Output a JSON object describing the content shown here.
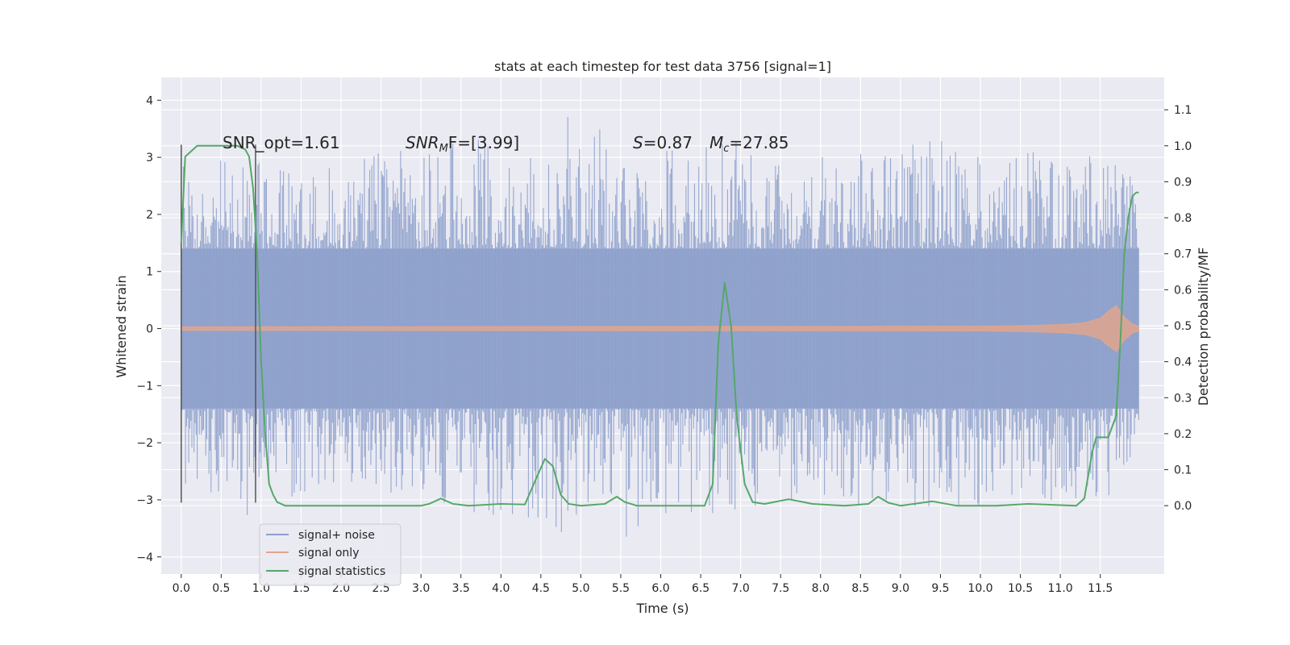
{
  "chart_data": {
    "type": "line",
    "title": "stats at each timestep for test data 3756 [signal=1]",
    "xlabel": "Time (s)",
    "ylabel": "Whitened strain",
    "ylabel_right": "Detection probability/MF",
    "xlim": [
      -0.25,
      12.3
    ],
    "ylim": [
      -4.3,
      4.4
    ],
    "ylim_right": [
      -0.19,
      1.19
    ],
    "x_ticks": [
      "0.0",
      "0.5",
      "1.0",
      "1.5",
      "2.0",
      "2.5",
      "3.0",
      "3.5",
      "4.0",
      "4.5",
      "5.0",
      "5.5",
      "6.0",
      "6.5",
      "7.0",
      "7.5",
      "8.0",
      "8.5",
      "9.0",
      "9.5",
      "10.0",
      "10.5",
      "11.0",
      "11.5"
    ],
    "y_ticks_left": [
      "−4",
      "−3",
      "−2",
      "−1",
      "0",
      "1",
      "2",
      "3",
      "4"
    ],
    "y_ticks_right": [
      "0.0",
      "0.1",
      "0.2",
      "0.3",
      "0.4",
      "0.5",
      "0.6",
      "0.7",
      "0.8",
      "0.9",
      "1.0",
      "1.1"
    ],
    "grid": true,
    "legend_position": "lower-left",
    "annotations": {
      "snr_opt": "SNR_opt=1.61",
      "snr_mf_main": "SNR",
      "snr_mf_sub": "M",
      "snr_mf_rest": "F=[3.99]",
      "s_main": "S",
      "s_rest": "=0.87",
      "mc_main": "M",
      "mc_sub": "c",
      "mc_rest": "=27.85"
    },
    "vlines": [
      0.0,
      0.93
    ],
    "series": [
      {
        "name": "signal+ noise",
        "color": "#8da0cb",
        "axis": "left",
        "envelope_x": [
          0.0,
          0.5,
          1.0,
          1.5,
          2.0,
          2.5,
          3.0,
          3.5,
          4.0,
          4.5,
          5.0,
          5.5,
          6.0,
          6.5,
          7.0,
          7.5,
          8.0,
          8.5,
          9.0,
          9.5,
          10.0,
          10.5,
          11.0,
          11.5,
          11.98
        ],
        "envelope_upper": [
          2.9,
          3.0,
          3.0,
          2.7,
          2.9,
          3.1,
          3.2,
          3.4,
          3.3,
          3.0,
          4.1,
          2.9,
          3.1,
          3.2,
          3.3,
          2.9,
          3.1,
          3.2,
          3.2,
          3.4,
          3.0,
          3.1,
          3.1,
          3.0,
          2.8
        ],
        "envelope_lower": [
          -2.8,
          -3.4,
          -3.2,
          -2.9,
          -3.0,
          -2.9,
          -3.0,
          -3.3,
          -3.4,
          -3.9,
          -3.3,
          -3.8,
          -3.3,
          -3.4,
          -3.3,
          -3.2,
          -3.0,
          -3.1,
          -3.4,
          -3.0,
          -3.3,
          -3.0,
          -3.1,
          -3.2,
          -2.0
        ]
      },
      {
        "name": "signal only",
        "color": "#e5a58a",
        "axis": "left",
        "x": [
          0.0,
          10.0,
          10.5,
          11.0,
          11.3,
          11.5,
          11.6,
          11.7,
          11.8,
          11.9,
          11.98
        ],
        "y": [
          0.03,
          0.04,
          0.05,
          0.07,
          0.1,
          0.18,
          0.3,
          0.4,
          0.2,
          0.08,
          0.04
        ]
      },
      {
        "name": "signal statistics",
        "color": "#55a868",
        "axis": "right",
        "x": [
          0.0,
          0.05,
          0.1,
          0.2,
          0.3,
          0.5,
          0.7,
          0.8,
          0.85,
          0.9,
          0.95,
          1.0,
          1.05,
          1.1,
          1.15,
          1.2,
          1.3,
          1.5,
          2.0,
          2.5,
          3.0,
          3.1,
          3.25,
          3.4,
          3.6,
          4.0,
          4.3,
          4.45,
          4.55,
          4.65,
          4.75,
          4.85,
          5.0,
          5.3,
          5.45,
          5.55,
          5.7,
          6.0,
          6.3,
          6.55,
          6.65,
          6.72,
          6.8,
          6.88,
          6.95,
          7.05,
          7.15,
          7.3,
          7.6,
          7.9,
          8.3,
          8.6,
          8.72,
          8.85,
          9.0,
          9.4,
          9.7,
          10.2,
          10.6,
          11.2,
          11.3,
          11.4,
          11.45,
          11.55,
          11.6,
          11.7,
          11.75,
          11.8,
          11.85,
          11.9,
          11.95,
          11.98
        ],
        "y": [
          0.73,
          0.97,
          0.98,
          1.0,
          1.0,
          1.0,
          1.0,
          0.99,
          0.97,
          0.88,
          0.7,
          0.4,
          0.2,
          0.06,
          0.03,
          0.01,
          0.0,
          0.0,
          0.0,
          0.0,
          0.0,
          0.005,
          0.02,
          0.005,
          0.0,
          0.005,
          0.003,
          0.08,
          0.13,
          0.11,
          0.03,
          0.005,
          0.0,
          0.005,
          0.025,
          0.01,
          0.0,
          0.0,
          0.0,
          0.0,
          0.06,
          0.45,
          0.62,
          0.5,
          0.25,
          0.06,
          0.01,
          0.005,
          0.018,
          0.005,
          0.0,
          0.005,
          0.025,
          0.008,
          0.0,
          0.012,
          0.0,
          0.0,
          0.005,
          0.0,
          0.02,
          0.15,
          0.19,
          0.19,
          0.19,
          0.25,
          0.45,
          0.7,
          0.8,
          0.86,
          0.87,
          0.87
        ]
      }
    ]
  }
}
